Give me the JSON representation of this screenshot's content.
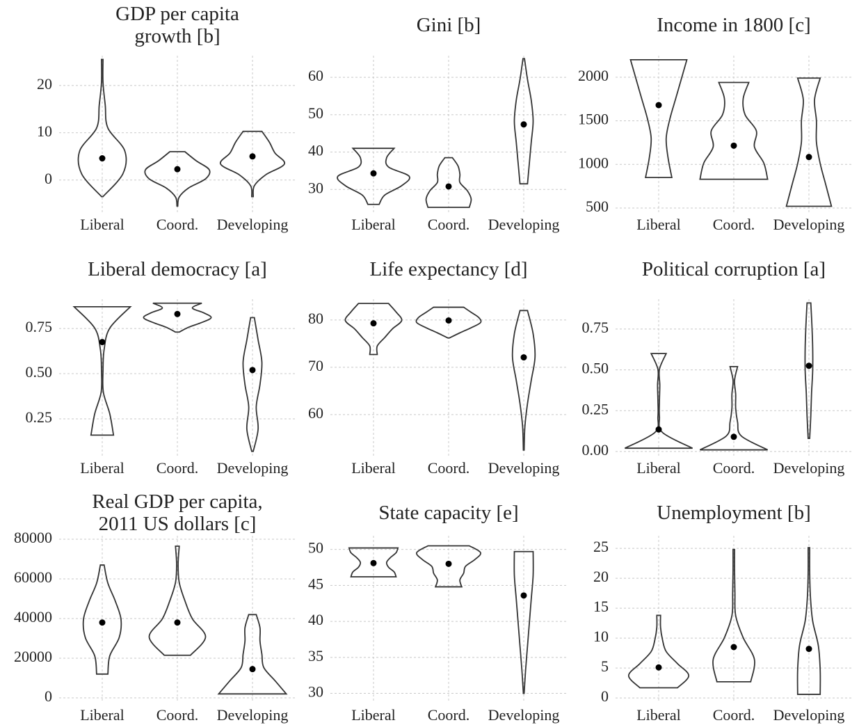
{
  "chart_data": [
    {
      "type": "violin",
      "title": "GDP per capita\ngrowth [b]",
      "categories": [
        "Liberal",
        "Coord.",
        "Developing"
      ],
      "values": [
        4.6,
        2.3,
        5.0
      ],
      "mins": [
        -3.5,
        -5.5,
        -3.5
      ],
      "maxs": [
        25.5,
        6,
        10.3
      ],
      "densities": [
        [
          0.02,
          0.55,
          0.6,
          0.15,
          0.08,
          0.02,
          0.02
        ],
        [
          0.01,
          0.05,
          0.3,
          0.75,
          0.85,
          0.5,
          0.2
        ],
        [
          0.02,
          0.05,
          0.35,
          0.85,
          0.6,
          0.45,
          0.25
        ]
      ],
      "ylim": [
        -6.8,
        26.3
      ],
      "yticks": [
        0,
        10,
        20
      ],
      "grid": true,
      "color": "#333333"
    },
    {
      "type": "violin",
      "title": "Gini [b]",
      "categories": [
        "Liberal",
        "Coord.",
        "Developing"
      ],
      "values": [
        34.3,
        30.8,
        47.4
      ],
      "mins": [
        26,
        25.2,
        31.5
      ],
      "maxs": [
        41,
        38.5,
        65
      ],
      "densities": [
        [
          0.15,
          0.3,
          0.75,
          0.95,
          0.4,
          0.35,
          0.55
        ],
        [
          0.55,
          0.6,
          0.5,
          0.3,
          0.3,
          0.25,
          0.1
        ],
        [
          0.1,
          0.15,
          0.2,
          0.25,
          0.2,
          0.1,
          0.02
        ]
      ],
      "ylim": [
        23.9,
        65.8
      ],
      "yticks": [
        30,
        40,
        50,
        60
      ],
      "grid": true,
      "color": "#333333"
    },
    {
      "type": "violin",
      "title": "Income in 1800 [c]",
      "categories": [
        "Liberal",
        "Coord.",
        "Developing"
      ],
      "values": [
        1680,
        1215,
        1085
      ],
      "mins": [
        850,
        830,
        520
      ],
      "maxs": [
        2200,
        1940,
        1990
      ],
      "densities": [
        [
          0.35,
          0.25,
          0.2,
          0.3,
          0.45,
          0.6,
          0.75
        ],
        [
          0.9,
          0.8,
          0.55,
          0.6,
          0.3,
          0.25,
          0.4
        ],
        [
          0.6,
          0.45,
          0.3,
          0.2,
          0.2,
          0.15,
          0.3
        ]
      ],
      "ylim": [
        452,
        2247
      ],
      "yticks": [
        500,
        1000,
        1500,
        2000
      ],
      "grid": true,
      "color": "#333333"
    },
    {
      "type": "violin",
      "title": "Liberal democracy [a]",
      "categories": [
        "Liberal",
        "Coord.",
        "Developing"
      ],
      "values": [
        0.675,
        0.83,
        0.52
      ],
      "mins": [
        0.16,
        0.73,
        0.07
      ],
      "maxs": [
        0.87,
        0.89,
        0.81
      ],
      "densities": [
        [
          0.3,
          0.2,
          0.03,
          0.02,
          0.05,
          0.2,
          0.75
        ],
        [
          0.05,
          0.3,
          0.65,
          0.9,
          0.7,
          0.4,
          0.65
        ],
        [
          0.02,
          0.15,
          0.1,
          0.2,
          0.25,
          0.15,
          0.05
        ]
      ],
      "ylim": [
        0.046,
        0.912
      ],
      "yticks": [
        {
          "value": 0.25,
          "label": "0.25"
        },
        {
          "value": 0.5,
          "label": "0.50"
        },
        {
          "value": 0.75,
          "label": "0.75"
        }
      ],
      "grid": true,
      "color": "#333333"
    },
    {
      "type": "violin",
      "title": "Life expectancy [d]",
      "categories": [
        "Liberal",
        "Coord.",
        "Developing"
      ],
      "values": [
        79.3,
        79.9,
        72.1
      ],
      "mins": [
        72.7,
        76.2,
        52.5
      ],
      "maxs": [
        83.5,
        82.7,
        82
      ],
      "densities": [
        [
          0.1,
          0.1,
          0.3,
          0.5,
          0.75,
          0.6,
          0.4
        ],
        [
          0.02,
          0.3,
          0.6,
          0.85,
          0.8,
          0.6,
          0.4
        ],
        [
          0.01,
          0.03,
          0.1,
          0.2,
          0.3,
          0.25,
          0.1
        ]
      ],
      "ylim": [
        51.3,
        84.4
      ],
      "yticks": [
        60,
        70,
        80
      ],
      "grid": true,
      "color": "#333333"
    },
    {
      "type": "violin",
      "title": "Political corruption [a]",
      "categories": [
        "Liberal",
        "Coord.",
        "Developing"
      ],
      "values": [
        0.135,
        0.09,
        0.525
      ],
      "mins": [
        0.02,
        0.01,
        0.08
      ],
      "maxs": [
        0.6,
        0.52,
        0.91
      ],
      "densities": [
        [
          0.9,
          0.1,
          0.02,
          0.02,
          0.03,
          0.02,
          0.2
        ],
        [
          0.9,
          0.2,
          0.1,
          0.05,
          0.05,
          0.02,
          0.1
        ],
        [
          0.02,
          0.05,
          0.07,
          0.1,
          0.1,
          0.08,
          0.05
        ]
      ],
      "ylim": [
        -0.026,
        0.933
      ],
      "yticks": [
        {
          "value": 0,
          "label": "0.00"
        },
        0.25,
        {
          "value": 0.5,
          "label": "0.50"
        },
        0.75
      ],
      "grid": true,
      "color": "#333333"
    },
    {
      "type": "violin",
      "title": "Real GDP per capita,\n2011 US dollars [c]",
      "categories": [
        "Liberal",
        "Coord.",
        "Developing"
      ],
      "values": [
        38000,
        38000,
        14500
      ],
      "mins": [
        12000,
        21500,
        2000
      ],
      "maxs": [
        67000,
        76500,
        42000
      ],
      "densities": [
        [
          0.15,
          0.2,
          0.45,
          0.5,
          0.35,
          0.15,
          0.05
        ],
        [
          0.35,
          0.75,
          0.4,
          0.2,
          0.05,
          0.02,
          0.05
        ],
        [
          0.9,
          0.6,
          0.3,
          0.25,
          0.2,
          0.2,
          0.1
        ]
      ],
      "ylim": [
        -2456,
        81750
      ],
      "yticks": [
        0,
        20000,
        40000,
        60000,
        80000
      ],
      "grid": true,
      "color": "#333333"
    },
    {
      "type": "violin",
      "title": "State capacity [e]",
      "categories": [
        "Liberal",
        "Coord.",
        "Developing"
      ],
      "values": [
        48.1,
        48.0,
        43.6
      ],
      "mins": [
        46.2,
        44.8,
        30
      ],
      "maxs": [
        50.2,
        50.5,
        49.7
      ],
      "densities": [
        [
          0.6,
          0.55,
          0.4,
          0.35,
          0.45,
          0.6,
          0.65
        ],
        [
          0.35,
          0.3,
          0.4,
          0.45,
          0.7,
          0.85,
          0.55
        ],
        [
          0.01,
          0.05,
          0.1,
          0.15,
          0.2,
          0.25,
          0.25
        ]
      ],
      "ylim": [
        28.7,
        51.9
      ],
      "yticks": [
        30,
        35,
        40,
        45,
        50
      ],
      "grid": true,
      "color": "#333333"
    },
    {
      "type": "violin",
      "title": "Unemployment [b]",
      "categories": [
        "Liberal",
        "Coord.",
        "Developing"
      ],
      "values": [
        5.1,
        8.5,
        8.2
      ],
      "mins": [
        1.7,
        2.7,
        0.6
      ],
      "maxs": [
        13.8,
        24.8,
        25.1
      ],
      "densities": [
        [
          0.5,
          0.8,
          0.5,
          0.2,
          0.1,
          0.05,
          0.05
        ],
        [
          0.45,
          0.55,
          0.25,
          0.05,
          0.03,
          0.02,
          0.02
        ],
        [
          0.3,
          0.3,
          0.25,
          0.1,
          0.04,
          0.02,
          0.02
        ]
      ],
      "ylim": [
        -0.8,
        27.1
      ],
      "yticks": [
        0,
        5,
        10,
        15,
        20,
        25
      ],
      "grid": true,
      "color": "#333333"
    }
  ]
}
